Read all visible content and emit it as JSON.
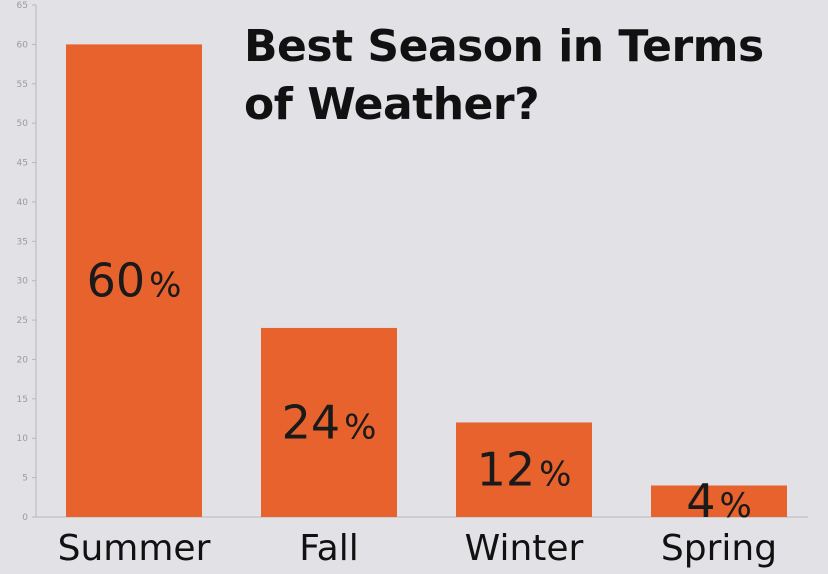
{
  "chart_data": {
    "type": "bar",
    "title": "Best Season in Terms of Weather?",
    "categories": [
      "Summer",
      "Fall",
      "Winter",
      "Spring"
    ],
    "values": [
      60,
      24,
      12,
      4
    ],
    "data_labels": [
      "60%",
      "24%",
      "12%",
      "4%"
    ],
    "ylim": [
      0,
      65
    ],
    "yticks": [
      0,
      5,
      10,
      15,
      20,
      25,
      30,
      35,
      40,
      45,
      50,
      55,
      60,
      65
    ],
    "xlabel": "",
    "ylabel": "",
    "grid": false,
    "legend": "none",
    "colors": {
      "bar": "#e8622e",
      "background": "#e1e1e6",
      "axis": "#b8b8be",
      "tick_text": "#9a9aa0",
      "text": "#111111"
    }
  }
}
